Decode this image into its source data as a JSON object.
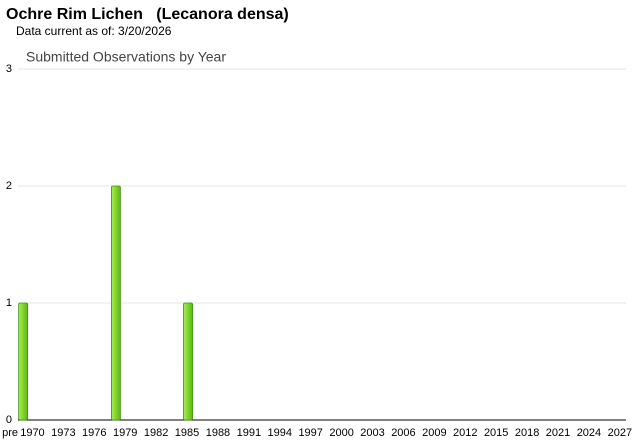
{
  "title": "Ochre Rim Lichen   (Lecanora densa)",
  "subtitle": "Data current as of: 3/20/2026",
  "chart_data": {
    "type": "bar",
    "title": "Submitted Observations by Year",
    "categories": [
      "pre",
      "1970",
      null,
      null,
      "1973",
      null,
      null,
      "1976",
      null,
      null,
      "1979",
      null,
      null,
      "1982",
      null,
      null,
      "1985",
      null,
      null,
      "1988",
      null,
      null,
      "1991",
      null,
      null,
      "1994",
      null,
      null,
      "1997",
      null,
      null,
      "2000",
      null,
      null,
      "2003",
      null,
      null,
      "2006",
      null,
      null,
      "2009",
      null,
      null,
      "2012",
      null,
      null,
      "2015",
      null,
      null,
      "2018",
      null,
      null,
      "2021",
      null,
      null,
      "2024",
      null,
      null,
      "2027"
    ],
    "values": [
      1,
      0,
      0,
      0,
      0,
      0,
      0,
      0,
      0,
      2,
      0,
      0,
      0,
      0,
      0,
      0,
      1,
      0,
      0,
      0,
      0,
      0,
      0,
      0,
      0,
      0,
      0,
      0,
      0,
      0,
      0,
      0,
      0,
      0,
      0,
      0,
      0,
      0,
      0,
      0,
      0,
      0,
      0,
      0,
      0,
      0,
      0,
      0,
      0,
      0,
      0,
      0,
      0,
      0,
      0,
      0,
      0,
      0,
      0
    ],
    "color": "#7fd62a",
    "ylim": [
      0,
      3
    ],
    "yticks": [
      0,
      1,
      2,
      3
    ],
    "grid": true
  }
}
